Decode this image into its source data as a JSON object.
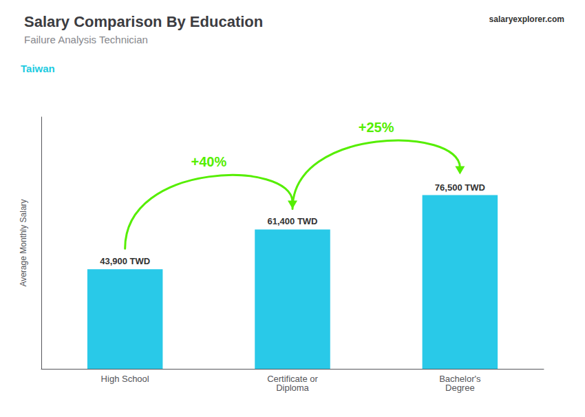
{
  "chart_data": {
    "type": "bar",
    "title": "Salary Comparison By Education",
    "subtitle": "Failure Analysis Technician",
    "ylabel": "Average Monthly Salary",
    "categories": [
      "High School",
      "Certificate or\nDiploma",
      "Bachelor's\nDegree"
    ],
    "values": [
      43900,
      61400,
      76500
    ],
    "value_labels": [
      "43,900 TWD",
      "61,400 TWD",
      "76,500 TWD"
    ],
    "data_labels": true,
    "color": "#29c9e8",
    "ylim": [
      0,
      110925
    ],
    "tick_labels": "x",
    "grid": false,
    "annotations": [
      {
        "text": "Taiwan",
        "color": "#1ecbe1"
      },
      {
        "text": "salaryexplorer.com"
      },
      {
        "text": "+40%",
        "from": "High School",
        "to": "Certificate or\nDiploma",
        "color": "#55ee00"
      },
      {
        "text": "+25%",
        "from": "Certificate or\nDiploma",
        "to": "Bachelor's\nDegree",
        "color": "#55ee00"
      }
    ]
  }
}
